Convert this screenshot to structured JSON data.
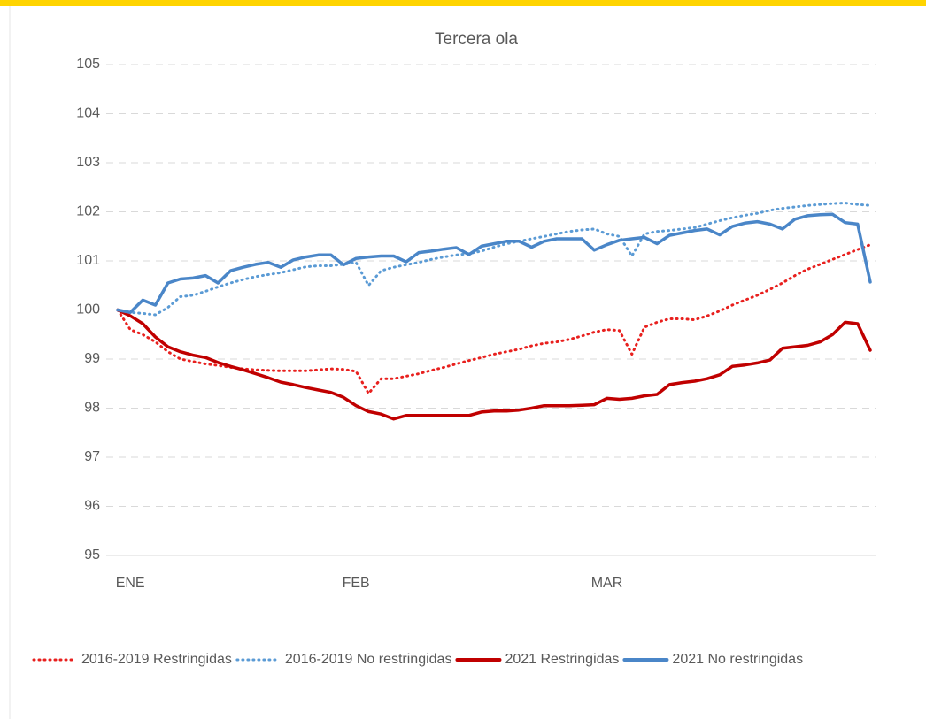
{
  "chart_data": {
    "type": "line",
    "title": "Tercera ola",
    "categories": [
      null,
      "ENE",
      null,
      null,
      null,
      null,
      null,
      null,
      null,
      null,
      null,
      null,
      null,
      null,
      null,
      null,
      null,
      null,
      null,
      "FEB",
      null,
      null,
      null,
      null,
      null,
      null,
      null,
      null,
      null,
      null,
      null,
      null,
      null,
      null,
      null,
      null,
      null,
      null,
      null,
      "MAR",
      null,
      null,
      null,
      null,
      null,
      null,
      null,
      null,
      null,
      null,
      null,
      null,
      null,
      null,
      null,
      null,
      null,
      null,
      null,
      null,
      null
    ],
    "ylim": [
      95,
      105
    ],
    "yticks": [
      95,
      96,
      97,
      98,
      99,
      100,
      101,
      102,
      103,
      104,
      105
    ],
    "grid": true,
    "legend": "bottom",
    "series": [
      {
        "name": "2016-2019 Restringidas",
        "color": "#e8201e",
        "style": "dotted",
        "values": [
          100,
          99.6,
          99.5,
          99.35,
          99.15,
          99.0,
          98.95,
          98.9,
          98.87,
          98.83,
          98.8,
          98.78,
          98.77,
          98.76,
          98.76,
          98.76,
          98.78,
          98.8,
          98.79,
          98.75,
          98.3,
          98.6,
          98.6,
          98.65,
          98.7,
          98.77,
          98.83,
          98.9,
          98.97,
          99.03,
          99.1,
          99.15,
          99.2,
          99.27,
          99.32,
          99.35,
          99.4,
          99.47,
          99.55,
          99.6,
          99.58,
          99.1,
          99.65,
          99.75,
          99.82,
          99.82,
          99.8,
          99.88,
          99.98,
          100.1,
          100.2,
          100.3,
          100.42,
          100.55,
          100.7,
          100.83,
          100.93,
          101.03,
          101.13,
          101.23,
          101.33
        ]
      },
      {
        "name": "2016-2019 No restringidas",
        "color": "#5b9bd5",
        "style": "dotted",
        "values": [
          100,
          99.95,
          99.93,
          99.9,
          100.05,
          100.27,
          100.3,
          100.38,
          100.47,
          100.55,
          100.62,
          100.68,
          100.72,
          100.76,
          100.82,
          100.88,
          100.9,
          100.9,
          100.93,
          100.97,
          100.5,
          100.8,
          100.87,
          100.92,
          100.97,
          101.03,
          101.08,
          101.12,
          101.15,
          101.2,
          101.28,
          101.35,
          101.4,
          101.45,
          101.5,
          101.55,
          101.6,
          101.63,
          101.65,
          101.55,
          101.5,
          101.1,
          101.55,
          101.6,
          101.62,
          101.65,
          101.68,
          101.75,
          101.82,
          101.88,
          101.93,
          101.97,
          102.03,
          102.07,
          102.1,
          102.13,
          102.15,
          102.17,
          102.18,
          102.15,
          102.13
        ]
      },
      {
        "name": "2021 Restringidas",
        "color": "#c00000",
        "style": "solid",
        "values": [
          100,
          99.88,
          99.72,
          99.45,
          99.25,
          99.15,
          99.08,
          99.03,
          98.93,
          98.85,
          98.78,
          98.7,
          98.62,
          98.53,
          98.48,
          98.42,
          98.37,
          98.32,
          98.22,
          98.05,
          97.93,
          97.88,
          97.78,
          97.85,
          97.85,
          97.85,
          97.85,
          97.85,
          97.85,
          97.92,
          97.94,
          97.94,
          97.96,
          98.0,
          98.05,
          98.05,
          98.05,
          98.06,
          98.07,
          98.2,
          98.18,
          98.2,
          98.25,
          98.28,
          98.48,
          98.52,
          98.55,
          98.6,
          98.68,
          98.85,
          98.88,
          98.92,
          98.98,
          99.22,
          99.25,
          99.28,
          99.35,
          99.5,
          99.75,
          99.72,
          99.18
        ]
      },
      {
        "name": "2021 No restringidas",
        "color": "#4a86c8",
        "style": "solid",
        "values": [
          100,
          99.95,
          100.2,
          100.1,
          100.55,
          100.63,
          100.65,
          100.7,
          100.55,
          100.8,
          100.87,
          100.93,
          100.97,
          100.87,
          101.02,
          101.08,
          101.12,
          101.12,
          100.92,
          101.05,
          101.08,
          101.1,
          101.1,
          100.98,
          101.17,
          101.2,
          101.24,
          101.27,
          101.13,
          101.3,
          101.35,
          101.4,
          101.4,
          101.28,
          101.4,
          101.45,
          101.45,
          101.45,
          101.22,
          101.33,
          101.42,
          101.45,
          101.48,
          101.35,
          101.52,
          101.57,
          101.62,
          101.65,
          101.53,
          101.7,
          101.77,
          101.8,
          101.75,
          101.65,
          101.85,
          101.92,
          101.94,
          101.95,
          101.78,
          101.75,
          100.57
        ]
      }
    ]
  }
}
